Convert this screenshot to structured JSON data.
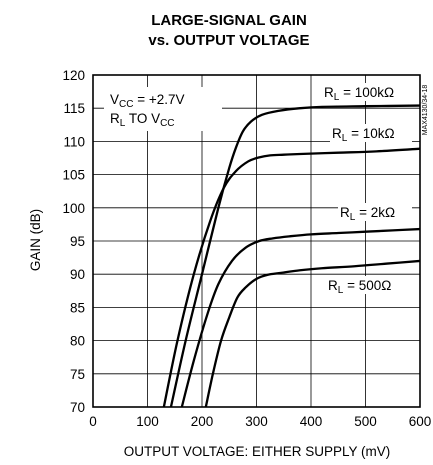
{
  "chart_data": {
    "type": "line",
    "title_line1": "LARGE-SIGNAL GAIN",
    "title_line2": "vs. OUTPUT VOLTAGE",
    "xlabel": "OUTPUT VOLTAGE:  EITHER SUPPLY (mV)",
    "ylabel": "GAIN (dB)",
    "xlim": [
      0,
      600
    ],
    "ylim": [
      70,
      120
    ],
    "xticks": [
      "0",
      "100",
      "200",
      "300",
      "400",
      "500",
      "600"
    ],
    "yticks": [
      "70",
      "75",
      "80",
      "85",
      "90",
      "95",
      "100",
      "105",
      "110",
      "115",
      "120"
    ],
    "grid": true,
    "figure_id": "MAX4130/34-18",
    "condition_line1": {
      "main": "V",
      "sub": "CC",
      "rest": " = +2.7V"
    },
    "condition_line2": {
      "main": "R",
      "sub": "L",
      "mid": " TO V",
      "sub2": "CC"
    },
    "series": [
      {
        "label": {
          "main": "R",
          "sub": "L",
          "rest": " = 100kΩ"
        },
        "x": [
          143,
          170,
          200,
          230,
          250,
          262,
          275,
          290,
          310,
          340,
          380,
          420,
          500,
          600
        ],
        "y": [
          70,
          80,
          90,
          100,
          106,
          109,
          111.5,
          113,
          114,
          114.6,
          115,
          115.2,
          115.3,
          115.4
        ]
      },
      {
        "label": {
          "main": "R",
          "sub": "L",
          "rest": " = 10kΩ"
        },
        "x": [
          130,
          155,
          185,
          215,
          240,
          262,
          285,
          305,
          325,
          350,
          380,
          450,
          520,
          600
        ],
        "y": [
          70,
          80,
          90,
          98,
          103,
          105.5,
          107,
          107.6,
          107.9,
          108,
          108.1,
          108.3,
          108.5,
          108.9
        ]
      },
      {
        "label": {
          "main": "R",
          "sub": "L",
          "rest": " = 2kΩ"
        },
        "x": [
          163,
          185,
          210,
          230,
          255,
          280,
          305,
          330,
          360,
          400,
          450,
          500,
          550,
          600
        ],
        "y": [
          70,
          77,
          84,
          88.5,
          92,
          94,
          95,
          95.4,
          95.7,
          96,
          96.2,
          96.4,
          96.6,
          96.8
        ]
      },
      {
        "label": {
          "main": "R",
          "sub": "L",
          "rest": " = 500Ω"
        },
        "x": [
          207,
          220,
          235,
          250,
          265,
          280,
          300,
          320,
          345,
          380,
          420,
          480,
          540,
          600
        ],
        "y": [
          70,
          75,
          80,
          83.5,
          86.5,
          88,
          89.3,
          89.9,
          90.2,
          90.6,
          90.9,
          91.2,
          91.6,
          92
        ]
      }
    ]
  }
}
